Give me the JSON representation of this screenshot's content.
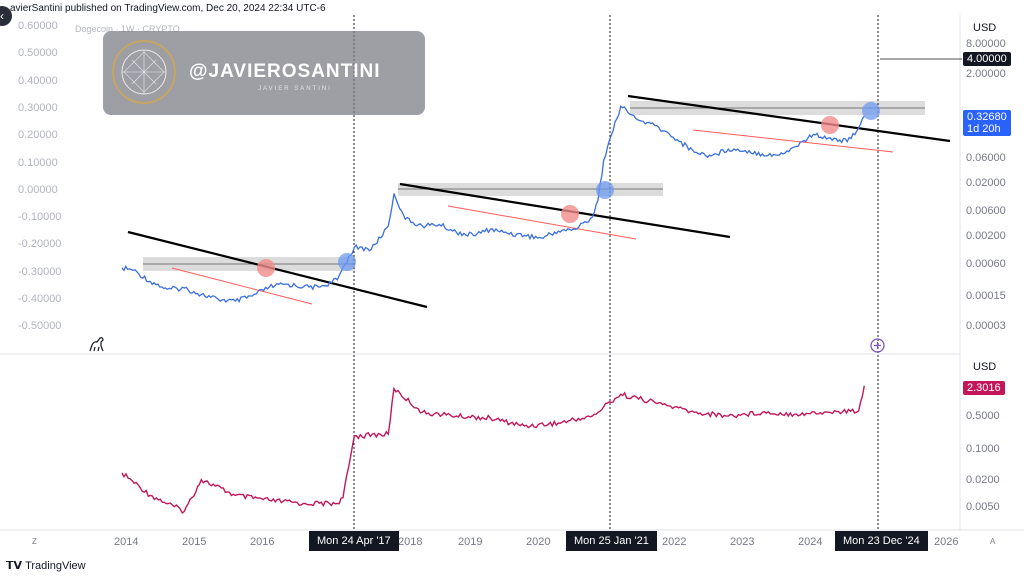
{
  "header": {
    "published_text": "avierSantini published on TradingView.com, Dec 20, 2024 22:34 UTC-6",
    "symbol": "Dogecoin · 1W · CRYPTO"
  },
  "watermark": {
    "handle": "@JAVIEROSANTINI",
    "subtitle": "JAVIER SANTINI",
    "logo_icon": "globe-network-icon"
  },
  "icons": {
    "back": "back-arrow-icon",
    "dino": "dinosaur-icon",
    "plus": "plus-circle-icon",
    "brand": "tradingview-logo-icon"
  },
  "colors": {
    "price_line": "#3a6fe0",
    "osc_line": "#c2185b",
    "trend_line": "#000000",
    "support_red": "#ff6b6b",
    "highlight_blue": "#6f9bf0",
    "highlight_pink": "#f08080",
    "zone_gray": "#d0d0d0"
  },
  "chart_data": [
    {
      "type": "line",
      "panel": "price",
      "title": "Dogecoin · 1W · CRYPTO",
      "y_unit": "USD",
      "log_scale": true,
      "left_axis_ticks": [
        "0.60000",
        "0.50000",
        "0.40000",
        "0.30000",
        "0.20000",
        "0.10000",
        "0.00000",
        "-0.10000",
        "-0.20000",
        "-0.30000",
        "-0.40000",
        "-0.50000"
      ],
      "right_axis_ticks": [
        "8.00000",
        "2.00000",
        "0.60000",
        "0.20000",
        "0.06000",
        "0.02000",
        "0.00600",
        "0.00200",
        "0.00060",
        "0.00015",
        "0.00003"
      ],
      "x_ticks": [
        "2014",
        "2015",
        "2016",
        "2018",
        "2019",
        "2020",
        "2022",
        "2023",
        "2024",
        "2026"
      ],
      "time_markers": [
        "Mon 24 Apr '17",
        "Mon 25 Jan '21",
        "Mon 23 Dec '24"
      ],
      "current_price": "0.32680",
      "countdown": "1d 20h",
      "cursor_price": "4.00000",
      "series": [
        {
          "name": "",
          "x": [
            "2014-01",
            "2014-03",
            "2014-06",
            "2014-09",
            "2014-12",
            "2015-03",
            "2015-06",
            "2015-09",
            "2015-12",
            "2016-03",
            "2016-06",
            "2016-09",
            "2016-12",
            "2017-03",
            "2017-04",
            "2017-06",
            "2017-09",
            "2017-12",
            "2018-01",
            "2018-03",
            "2018-06",
            "2018-09",
            "2018-12",
            "2019-03",
            "2019-06",
            "2019-09",
            "2019-12",
            "2020-03",
            "2020-06",
            "2020-09",
            "2020-12",
            "2021-01",
            "2021-02",
            "2021-05",
            "2021-08",
            "2021-11",
            "2022-03",
            "2022-06",
            "2022-09",
            "2022-12",
            "2023-03",
            "2023-06",
            "2023-09",
            "2023-12",
            "2024-03",
            "2024-06",
            "2024-09",
            "2024-11",
            "2024-12"
          ],
          "values": [
            0.0005,
            0.00045,
            0.00028,
            0.0002,
            0.00021,
            0.00016,
            0.00013,
            0.00012,
            0.00015,
            0.00022,
            0.00025,
            0.00022,
            0.00022,
            0.0003,
            0.0005,
            0.0012,
            0.0011,
            0.003,
            0.012,
            0.004,
            0.003,
            0.0032,
            0.0023,
            0.002,
            0.0026,
            0.0022,
            0.002,
            0.0018,
            0.0024,
            0.0026,
            0.0044,
            0.009,
            0.05,
            0.5,
            0.28,
            0.22,
            0.12,
            0.07,
            0.06,
            0.08,
            0.075,
            0.065,
            0.062,
            0.09,
            0.15,
            0.13,
            0.11,
            0.2,
            0.3268
          ]
        }
      ]
    },
    {
      "type": "line",
      "panel": "oscillator",
      "y_unit": "USD",
      "log_scale": true,
      "right_axis_ticks": [
        "0.5000",
        "0.1000",
        "0.0200",
        "0.0050"
      ],
      "current_value": "2.3016",
      "series": [
        {
          "name": "",
          "x": [
            "2014-01",
            "2014-06",
            "2014-12",
            "2015-03",
            "2015-09",
            "2016-03",
            "2016-09",
            "2017-03",
            "2017-04",
            "2017-06",
            "2017-12",
            "2018-01",
            "2018-06",
            "2018-12",
            "2019-06",
            "2019-12",
            "2020-06",
            "2020-12",
            "2021-01",
            "2021-02",
            "2021-05",
            "2021-11",
            "2022-06",
            "2022-12",
            "2023-06",
            "2023-12",
            "2024-06",
            "2024-11",
            "2024-12"
          ],
          "values": [
            0.028,
            0.009,
            0.004,
            0.02,
            0.009,
            0.007,
            0.006,
            0.006,
            0.008,
            0.18,
            0.2,
            2.0,
            0.6,
            0.5,
            0.45,
            0.3,
            0.35,
            0.5,
            0.6,
            0.8,
            1.5,
            1.0,
            0.6,
            0.5,
            0.6,
            0.55,
            0.6,
            0.65,
            2.3016
          ]
        }
      ]
    }
  ]
}
